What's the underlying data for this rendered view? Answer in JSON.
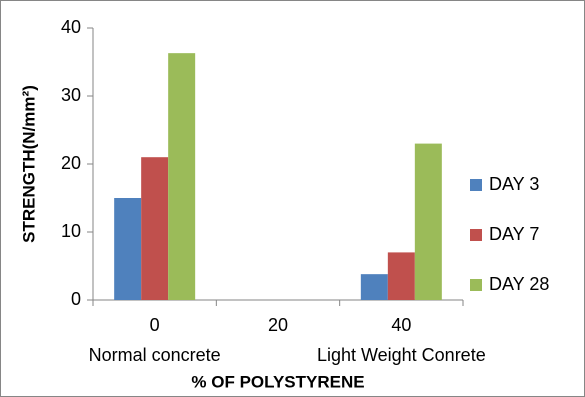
{
  "chart_data": {
    "type": "bar",
    "y_label": "STRENGTH(N/mm²)",
    "x_label": "% OF POLYSTYRENE",
    "categories": [
      "0",
      "20",
      "40"
    ],
    "category_notes": [
      "Normal concrete",
      null,
      "Light Weight Conrete"
    ],
    "series": [
      {
        "name": "DAY 3",
        "color": "#4f81bd",
        "values": [
          15,
          null,
          3.8
        ]
      },
      {
        "name": "DAY 7",
        "color": "#c0504d",
        "values": [
          21,
          null,
          7
        ]
      },
      {
        "name": "DAY 28",
        "color": "#9bbb59",
        "values": [
          36.3,
          null,
          23
        ]
      }
    ],
    "ylim": [
      0,
      40
    ],
    "yticks": [
      0,
      10,
      20,
      30,
      40
    ],
    "grid": false,
    "legend": "right"
  }
}
